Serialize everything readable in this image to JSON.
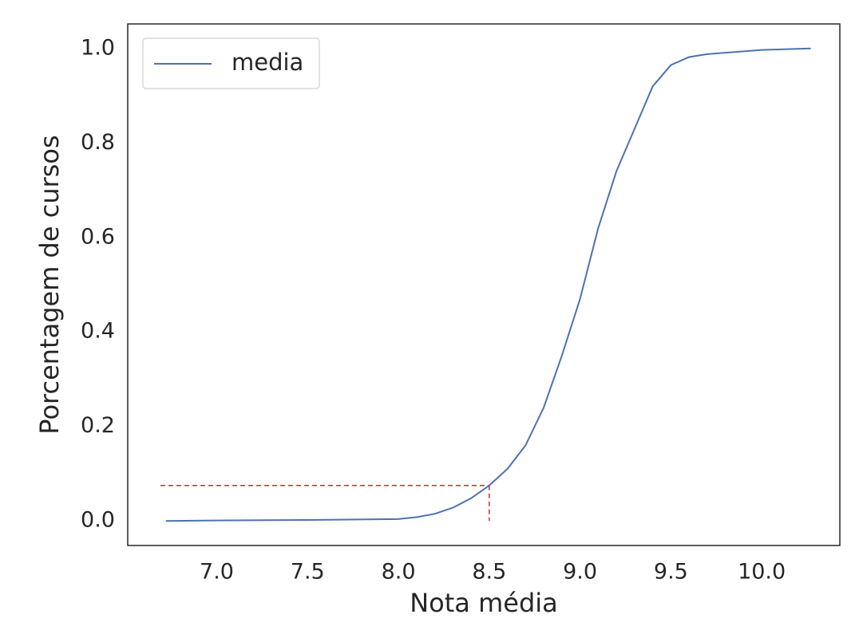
{
  "chart_data": {
    "type": "line",
    "x_label": "Nota média",
    "y_label": "Porcentagem de cursos",
    "x": [
      6.72,
      7.0,
      7.5,
      8.0,
      8.1,
      8.2,
      8.3,
      8.4,
      8.5,
      8.6,
      8.7,
      8.8,
      8.9,
      9.0,
      9.1,
      9.2,
      9.3,
      9.4,
      9.5,
      9.6,
      9.7,
      9.8,
      10.0,
      10.27
    ],
    "series": [
      {
        "name": "media",
        "color": "#4c72b0",
        "values": [
          0,
          0.001,
          0.002,
          0.004,
          0.008,
          0.015,
          0.028,
          0.048,
          0.075,
          0.11,
          0.16,
          0.24,
          0.35,
          0.47,
          0.62,
          0.74,
          0.83,
          0.92,
          0.965,
          0.982,
          0.988,
          0.991,
          0.997,
          1.0
        ]
      }
    ],
    "reference": {
      "x": 8.5,
      "y": 0.075,
      "x_start": 6.69,
      "color": "#d62728"
    },
    "xlim": [
      6.51,
      10.43
    ],
    "ylim": [
      -0.052,
      1.052
    ],
    "xticks": [
      {
        "value": 7,
        "label": "7.0"
      },
      7.5,
      {
        "value": 8,
        "label": "8.0"
      },
      8.5,
      {
        "value": 9,
        "label": "9.0"
      },
      9.5,
      {
        "value": 10,
        "label": "10.0"
      }
    ],
    "yticks": [
      {
        "value": 0,
        "label": "0.0"
      },
      0.2,
      0.4,
      0.6,
      0.8,
      {
        "value": 1,
        "label": "1.0"
      }
    ],
    "grid": false,
    "legend": "upper left"
  }
}
